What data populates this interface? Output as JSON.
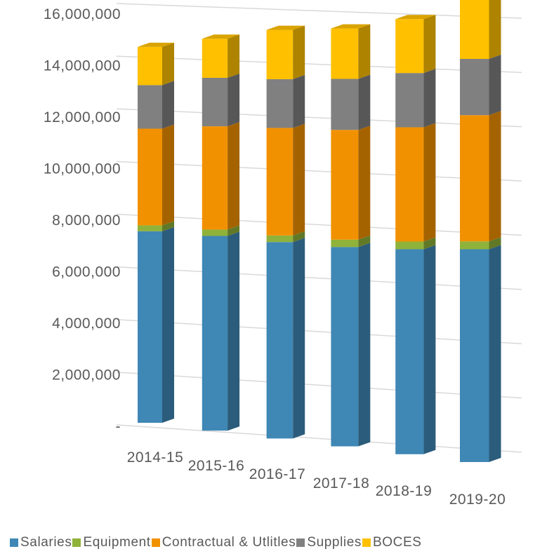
{
  "chart_data": {
    "type": "bar",
    "stacked": true,
    "three_d": true,
    "categories": [
      "2014-15",
      "2015-16",
      "2016-17",
      "2017-18",
      "2018-19",
      "2019-20"
    ],
    "series": [
      {
        "name": "Salaries",
        "color": "#3f87b5",
        "values": [
          7170000,
          7030000,
          6850000,
          6720000,
          6690000,
          6730000
        ]
      },
      {
        "name": "Equipment",
        "color": "#8fb23a",
        "values": [
          220000,
          230000,
          230000,
          250000,
          250000,
          250000
        ]
      },
      {
        "name": "Contractual & Utlitles",
        "color": "#f29100",
        "values": [
          3620000,
          3730000,
          3750000,
          3700000,
          3730000,
          3990000
        ]
      },
      {
        "name": "Supplies",
        "color": "#808080",
        "values": [
          1630000,
          1750000,
          1700000,
          1720000,
          1770000,
          1780000
        ]
      },
      {
        "name": "BOCES",
        "color": "#ffc000",
        "values": [
          1430000,
          1410000,
          1720000,
          1700000,
          1760000,
          2050000
        ]
      }
    ],
    "y_tick_labels": [
      "-",
      "2,000,000",
      "4,000,000",
      "6,000,000",
      "8,000,000",
      "10,000,000",
      "12,000,000",
      "14,000,000",
      "16,000,000"
    ],
    "ylim": [
      0,
      16000000
    ],
    "grid": true,
    "legend_position": "bottom",
    "title": "",
    "xlabel": "",
    "ylabel": ""
  }
}
